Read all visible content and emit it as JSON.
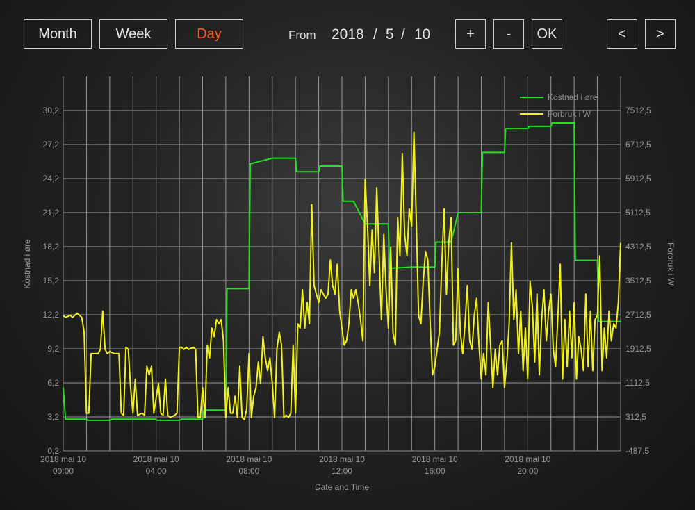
{
  "toolbar": {
    "month_label": "Month",
    "week_label": "Week",
    "day_label": "Day",
    "active": "Day",
    "active_color": "#ff5a1f",
    "from_label": "From",
    "year": "2018",
    "month": "5",
    "day": "10",
    "separator": "/",
    "plus_label": "+",
    "minus_label": "-",
    "ok_label": "OK",
    "prev_label": "<",
    "next_label": ">"
  },
  "chart_data": {
    "type": "line",
    "xlabel": "Date and Time",
    "ylabel_left": "Kostnad i øre",
    "ylabel_right": "Forbruk i W",
    "x_range_hours": [
      0,
      24
    ],
    "x_ticks": [
      {
        "hour": 0,
        "line1": "2018 mai 10",
        "line2": "00:00"
      },
      {
        "hour": 4,
        "line1": "2018 mai 10",
        "line2": "04:00"
      },
      {
        "hour": 8,
        "line1": "2018 mai 10",
        "line2": "08:00"
      },
      {
        "hour": 12,
        "line1": "2018 mai 10",
        "line2": "12:00"
      },
      {
        "hour": 16,
        "line1": "2018 mai 10",
        "line2": "16:00"
      },
      {
        "hour": 20,
        "line1": "2018 mai 10",
        "line2": "20:00"
      }
    ],
    "ylim_left": [
      0.2,
      33.2
    ],
    "ylim_right": [
      -487.5,
      8312.5
    ],
    "left_ticks": [
      "0,2",
      "3,2",
      "6,2",
      "9,2",
      "12,2",
      "15,2",
      "18,2",
      "21,2",
      "24,2",
      "27,2",
      "30,2"
    ],
    "right_ticks": [
      "-487,5",
      "312,5",
      "1112,5",
      "1912,5",
      "2712,5",
      "3512,5",
      "4312,5",
      "5112,5",
      "5912,5",
      "6712,5",
      "7512,5"
    ],
    "grid": true,
    "legend_position": "top-right",
    "colors": {
      "axis": "#8a8a8a",
      "grid": "#a9adad",
      "cost": "#22e022",
      "power": "#f2f21a"
    },
    "series": [
      {
        "name": "Kostnad i øre",
        "axis": "left",
        "points": [
          [
            0,
            5.8
          ],
          [
            0.1,
            3.0
          ],
          [
            1,
            3.0
          ],
          [
            1.05,
            2.9
          ],
          [
            2,
            2.9
          ],
          [
            2.1,
            3.0
          ],
          [
            4,
            3.0
          ],
          [
            4.05,
            2.9
          ],
          [
            5,
            2.9
          ],
          [
            5.1,
            3.0
          ],
          [
            6,
            3.0
          ],
          [
            6.05,
            3.8
          ],
          [
            7,
            3.8
          ],
          [
            7.05,
            14.5
          ],
          [
            8,
            14.5
          ],
          [
            8.05,
            25.5
          ],
          [
            9,
            26.0
          ],
          [
            10,
            26.0
          ],
          [
            10.05,
            24.8
          ],
          [
            11,
            24.8
          ],
          [
            11.05,
            25.3
          ],
          [
            12,
            25.3
          ],
          [
            12.05,
            22.2
          ],
          [
            12.5,
            22.2
          ],
          [
            13,
            20.2
          ],
          [
            14,
            20.2
          ],
          [
            14.05,
            16.3
          ],
          [
            15,
            16.4
          ],
          [
            16,
            16.4
          ],
          [
            16.05,
            18.6
          ],
          [
            16.7,
            18.6
          ],
          [
            17,
            21.2
          ],
          [
            18,
            21.2
          ],
          [
            18.05,
            26.5
          ],
          [
            19,
            26.5
          ],
          [
            19.05,
            28.6
          ],
          [
            20,
            28.6
          ],
          [
            20.05,
            28.8
          ],
          [
            21,
            28.8
          ],
          [
            21.05,
            29.1
          ],
          [
            22,
            29.1
          ],
          [
            22.05,
            17.0
          ],
          [
            23,
            17.0
          ],
          [
            23.05,
            11.6
          ],
          [
            24,
            11.6
          ]
        ]
      },
      {
        "name": "Forbruk i W",
        "axis": "right",
        "points": [
          [
            0,
            2700
          ],
          [
            0.1,
            2650
          ],
          [
            0.3,
            2700
          ],
          [
            0.4,
            2650
          ],
          [
            0.6,
            2750
          ],
          [
            0.8,
            2650
          ],
          [
            0.9,
            2300
          ],
          [
            1,
            400
          ],
          [
            1.1,
            400
          ],
          [
            1.2,
            1800
          ],
          [
            1.4,
            1800
          ],
          [
            1.5,
            1800
          ],
          [
            1.6,
            1900
          ],
          [
            1.7,
            2800
          ],
          [
            1.8,
            1900
          ],
          [
            1.9,
            1800
          ],
          [
            2,
            1850
          ],
          [
            2.2,
            1800
          ],
          [
            2.4,
            1800
          ],
          [
            2.5,
            400
          ],
          [
            2.6,
            350
          ],
          [
            2.7,
            1950
          ],
          [
            2.8,
            1900
          ],
          [
            2.9,
            1000
          ],
          [
            3,
            400
          ],
          [
            3.1,
            1200
          ],
          [
            3.2,
            350
          ],
          [
            3.4,
            400
          ],
          [
            3.5,
            350
          ],
          [
            3.6,
            1500
          ],
          [
            3.7,
            1300
          ],
          [
            3.8,
            1500
          ],
          [
            3.9,
            400
          ],
          [
            4.1,
            1100
          ],
          [
            4.2,
            400
          ],
          [
            4.3,
            350
          ],
          [
            4.4,
            1200
          ],
          [
            4.5,
            350
          ],
          [
            4.6,
            300
          ],
          [
            4.8,
            350
          ],
          [
            4.9,
            400
          ],
          [
            5,
            1950
          ],
          [
            5.1,
            1950
          ],
          [
            5.2,
            1900
          ],
          [
            5.3,
            1950
          ],
          [
            5.4,
            1900
          ],
          [
            5.6,
            1950
          ],
          [
            5.7,
            1900
          ],
          [
            5.8,
            300
          ],
          [
            5.9,
            300
          ],
          [
            6,
            1000
          ],
          [
            6.1,
            300
          ],
          [
            6.2,
            2000
          ],
          [
            6.3,
            1700
          ],
          [
            6.4,
            2400
          ],
          [
            6.5,
            2200
          ],
          [
            6.6,
            2600
          ],
          [
            6.7,
            2500
          ],
          [
            6.8,
            2600
          ],
          [
            6.9,
            2100
          ],
          [
            7,
            300
          ],
          [
            7.1,
            1000
          ],
          [
            7.2,
            400
          ],
          [
            7.3,
            400
          ],
          [
            7.4,
            800
          ],
          [
            7.5,
            300
          ],
          [
            7.6,
            1500
          ],
          [
            7.7,
            300
          ],
          [
            7.8,
            250
          ],
          [
            7.9,
            500
          ],
          [
            8,
            1800
          ],
          [
            8.1,
            300
          ],
          [
            8.2,
            800
          ],
          [
            8.3,
            1000
          ],
          [
            8.4,
            1600
          ],
          [
            8.5,
            1100
          ],
          [
            8.6,
            2200
          ],
          [
            8.7,
            1700
          ],
          [
            8.8,
            1400
          ],
          [
            8.9,
            1700
          ],
          [
            9,
            1100
          ],
          [
            9.1,
            300
          ],
          [
            9.2,
            1900
          ],
          [
            9.3,
            2300
          ],
          [
            9.4,
            2000
          ],
          [
            9.5,
            300
          ],
          [
            9.6,
            350
          ],
          [
            9.7,
            300
          ],
          [
            9.8,
            400
          ],
          [
            9.9,
            2000
          ],
          [
            10,
            400
          ],
          [
            10.1,
            2500
          ],
          [
            10.2,
            2400
          ],
          [
            10.3,
            3300
          ],
          [
            10.4,
            2400
          ],
          [
            10.5,
            3000
          ],
          [
            10.6,
            2500
          ],
          [
            10.7,
            5300
          ],
          [
            10.8,
            3400
          ],
          [
            10.9,
            3200
          ],
          [
            11,
            3000
          ],
          [
            11.1,
            3300
          ],
          [
            11.2,
            3200
          ],
          [
            11.3,
            3100
          ],
          [
            11.4,
            3200
          ],
          [
            11.5,
            4000
          ],
          [
            11.6,
            3400
          ],
          [
            11.7,
            3200
          ],
          [
            11.8,
            3900
          ],
          [
            11.9,
            2800
          ],
          [
            12,
            2400
          ],
          [
            12.1,
            2000
          ],
          [
            12.2,
            2100
          ],
          [
            12.3,
            2500
          ],
          [
            12.4,
            3300
          ],
          [
            12.5,
            3100
          ],
          [
            12.6,
            3300
          ],
          [
            12.7,
            3000
          ],
          [
            12.8,
            2600
          ],
          [
            12.9,
            2100
          ],
          [
            13,
            5900
          ],
          [
            13.1,
            4800
          ],
          [
            13.2,
            3400
          ],
          [
            13.3,
            4700
          ],
          [
            13.4,
            3700
          ],
          [
            13.5,
            5700
          ],
          [
            13.6,
            4100
          ],
          [
            13.7,
            2600
          ],
          [
            13.8,
            4600
          ],
          [
            13.9,
            3300
          ],
          [
            14,
            2400
          ],
          [
            14.1,
            4300
          ],
          [
            14.2,
            2300
          ],
          [
            14.3,
            2000
          ],
          [
            14.4,
            5000
          ],
          [
            14.5,
            4100
          ],
          [
            14.6,
            6500
          ],
          [
            14.7,
            4600
          ],
          [
            14.8,
            4100
          ],
          [
            14.9,
            5200
          ],
          [
            15,
            4800
          ],
          [
            15.1,
            7000
          ],
          [
            15.2,
            5000
          ],
          [
            15.3,
            2700
          ],
          [
            15.4,
            2500
          ],
          [
            15.5,
            3500
          ],
          [
            15.6,
            4200
          ],
          [
            15.7,
            4000
          ],
          [
            15.8,
            2500
          ],
          [
            15.9,
            1300
          ],
          [
            16,
            1500
          ],
          [
            16.1,
            1900
          ],
          [
            16.2,
            2300
          ],
          [
            16.3,
            3900
          ],
          [
            16.4,
            5200
          ],
          [
            16.5,
            3200
          ],
          [
            16.6,
            4400
          ],
          [
            16.7,
            5000
          ],
          [
            16.8,
            2000
          ],
          [
            16.9,
            2100
          ],
          [
            17,
            3800
          ],
          [
            17.1,
            2300
          ],
          [
            17.2,
            1800
          ],
          [
            17.3,
            2500
          ],
          [
            17.4,
            3400
          ],
          [
            17.5,
            2100
          ],
          [
            17.6,
            1900
          ],
          [
            17.7,
            2700
          ],
          [
            17.8,
            3100
          ],
          [
            17.9,
            2000
          ],
          [
            18,
            1200
          ],
          [
            18.1,
            1800
          ],
          [
            18.2,
            1300
          ],
          [
            18.3,
            3000
          ],
          [
            18.4,
            2000
          ],
          [
            18.5,
            1000
          ],
          [
            18.6,
            1900
          ],
          [
            18.7,
            1300
          ],
          [
            18.8,
            2000
          ],
          [
            18.9,
            2100
          ],
          [
            19,
            1000
          ],
          [
            19.1,
            1600
          ],
          [
            19.2,
            2500
          ],
          [
            19.3,
            4400
          ],
          [
            19.4,
            2600
          ],
          [
            19.5,
            3300
          ],
          [
            19.6,
            1800
          ],
          [
            19.7,
            2800
          ],
          [
            19.8,
            1400
          ],
          [
            19.9,
            2400
          ],
          [
            20,
            1200
          ],
          [
            20.1,
            3500
          ],
          [
            20.2,
            2900
          ],
          [
            20.3,
            1600
          ],
          [
            20.4,
            3200
          ],
          [
            20.5,
            1300
          ],
          [
            20.6,
            2600
          ],
          [
            20.7,
            3300
          ],
          [
            20.8,
            2100
          ],
          [
            20.9,
            2800
          ],
          [
            21,
            3200
          ],
          [
            21.1,
            1900
          ],
          [
            21.2,
            1500
          ],
          [
            21.3,
            2700
          ],
          [
            21.4,
            3900
          ],
          [
            21.5,
            1200
          ],
          [
            21.6,
            2600
          ],
          [
            21.7,
            1500
          ],
          [
            21.8,
            2800
          ],
          [
            21.9,
            1700
          ],
          [
            22,
            3000
          ],
          [
            22.1,
            1200
          ],
          [
            22.2,
            2200
          ],
          [
            22.3,
            1900
          ],
          [
            22.4,
            1400
          ],
          [
            22.5,
            3200
          ],
          [
            22.6,
            1500
          ],
          [
            22.7,
            2800
          ],
          [
            22.8,
            1400
          ],
          [
            22.9,
            2600
          ],
          [
            23,
            2700
          ],
          [
            23.1,
            4100
          ],
          [
            23.2,
            1400
          ],
          [
            23.3,
            2400
          ],
          [
            23.4,
            1700
          ],
          [
            23.5,
            2800
          ],
          [
            23.6,
            2100
          ],
          [
            23.7,
            2500
          ],
          [
            23.8,
            2400
          ],
          [
            23.9,
            3000
          ],
          [
            24,
            4400
          ]
        ]
      }
    ]
  }
}
